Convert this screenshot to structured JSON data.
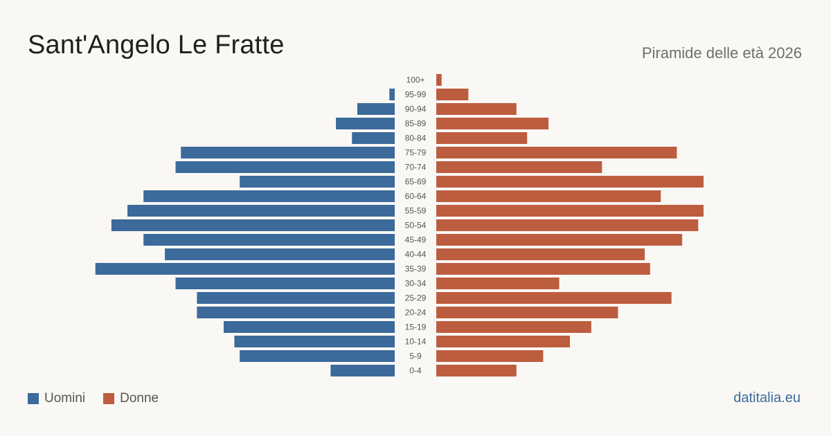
{
  "header": {
    "title": "Sant'Angelo Le Fratte",
    "subtitle": "Piramide delle età 2026"
  },
  "footer": {
    "source": "datitalia.eu"
  },
  "colors": {
    "men": "#3b6a9b",
    "women": "#bd5d3f",
    "age_label": "#555555"
  },
  "chart_data": {
    "type": "bar",
    "orientation": "horizontal-pyramid",
    "categories": [
      "100+",
      "95-99",
      "90-94",
      "85-89",
      "80-84",
      "75-79",
      "70-74",
      "65-69",
      "60-64",
      "55-59",
      "50-54",
      "45-49",
      "40-44",
      "35-39",
      "30-34",
      "25-29",
      "20-24",
      "15-19",
      "10-14",
      "5-9",
      "0-4"
    ],
    "series": [
      {
        "name": "Uomini",
        "side": "left",
        "values": [
          0,
          1,
          7,
          11,
          8,
          40,
          41,
          29,
          47,
          50,
          53,
          47,
          43,
          56,
          41,
          37,
          37,
          32,
          30,
          29,
          12
        ]
      },
      {
        "name": "Donne",
        "side": "right",
        "values": [
          1,
          6,
          15,
          21,
          17,
          45,
          31,
          50,
          42,
          50,
          49,
          46,
          39,
          40,
          23,
          44,
          34,
          29,
          25,
          20,
          15
        ]
      }
    ],
    "xlim": [
      0,
      57
    ],
    "legend_position": "bottom-left",
    "grid": false
  }
}
